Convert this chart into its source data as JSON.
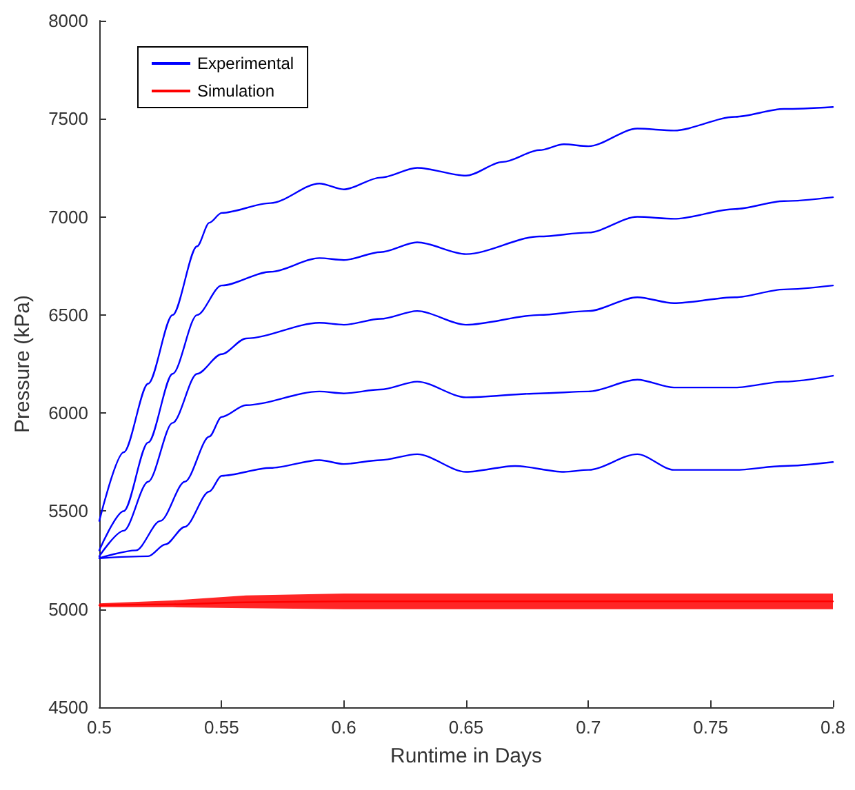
{
  "chart_data": {
    "type": "line",
    "xlabel": "Runtime in Days",
    "ylabel": "Pressure (kPa)",
    "xlim": [
      0.5,
      0.8
    ],
    "xticks": [
      0.5,
      0.55,
      0.6,
      0.65,
      0.7,
      0.75,
      0.8
    ],
    "ylim": [
      4500,
      8000
    ],
    "yticks": [
      4500,
      5000,
      5500,
      6000,
      6500,
      7000,
      7500,
      8000
    ],
    "grid": false,
    "legend": "top left",
    "marker": "none",
    "line_style": "solid",
    "series": [
      {
        "name": "Experimental",
        "color": "#0000ff",
        "x": [
          0.5,
          0.51,
          0.52,
          0.53,
          0.54,
          0.545,
          0.55,
          0.57,
          0.59,
          0.6,
          0.615,
          0.63,
          0.65,
          0.665,
          0.68,
          0.69,
          0.7,
          0.72,
          0.735,
          0.76,
          0.78,
          0.8
        ],
        "values": [
          5450,
          5800,
          6150,
          6500,
          6850,
          6970,
          7020,
          7070,
          7170,
          7140,
          7200,
          7250,
          7210,
          7280,
          7340,
          7370,
          7360,
          7450,
          7440,
          7510,
          7550,
          7560
        ]
      },
      {
        "color": "#0000ff",
        "x": [
          0.5,
          0.51,
          0.52,
          0.53,
          0.54,
          0.55,
          0.57,
          0.59,
          0.6,
          0.615,
          0.63,
          0.65,
          0.68,
          0.7,
          0.72,
          0.735,
          0.76,
          0.78,
          0.8
        ],
        "values": [
          5300,
          5500,
          5850,
          6200,
          6500,
          6650,
          6720,
          6790,
          6780,
          6820,
          6870,
          6810,
          6900,
          6920,
          7000,
          6990,
          7040,
          7080,
          7100
        ]
      },
      {
        "color": "#0000ff",
        "x": [
          0.5,
          0.51,
          0.52,
          0.53,
          0.54,
          0.55,
          0.56,
          0.59,
          0.6,
          0.615,
          0.63,
          0.65,
          0.68,
          0.7,
          0.72,
          0.735,
          0.76,
          0.78,
          0.8
        ],
        "values": [
          5270,
          5400,
          5650,
          5950,
          6200,
          6300,
          6380,
          6460,
          6450,
          6480,
          6520,
          6450,
          6500,
          6520,
          6590,
          6560,
          6590,
          6630,
          6650
        ]
      },
      {
        "color": "#0000ff",
        "x": [
          0.5,
          0.515,
          0.525,
          0.535,
          0.545,
          0.55,
          0.56,
          0.59,
          0.6,
          0.615,
          0.63,
          0.65,
          0.68,
          0.7,
          0.72,
          0.735,
          0.76,
          0.78,
          0.8
        ],
        "values": [
          5260,
          5300,
          5450,
          5650,
          5880,
          5980,
          6040,
          6110,
          6100,
          6120,
          6160,
          6080,
          6100,
          6110,
          6170,
          6130,
          6130,
          6160,
          6190
        ]
      },
      {
        "color": "#0000ff",
        "x": [
          0.5,
          0.52,
          0.527,
          0.535,
          0.545,
          0.55,
          0.57,
          0.59,
          0.6,
          0.615,
          0.63,
          0.65,
          0.67,
          0.69,
          0.7,
          0.72,
          0.735,
          0.76,
          0.78,
          0.8
        ],
        "values": [
          5260,
          5270,
          5330,
          5420,
          5600,
          5680,
          5720,
          5760,
          5740,
          5760,
          5790,
          5700,
          5730,
          5700,
          5710,
          5790,
          5710,
          5710,
          5730,
          5750
        ]
      },
      {
        "name": "Simulation",
        "color": "#ff0000",
        "x": [
          0.5,
          0.53,
          0.56,
          0.6,
          0.65,
          0.7,
          0.75,
          0.8
        ],
        "values": [
          5020,
          5025,
          5035,
          5040,
          5040,
          5040,
          5040,
          5040
        ],
        "lower": [
          5010,
          5010,
          5005,
          5000,
          5000,
          5000,
          5000,
          5000
        ],
        "upper": [
          5030,
          5045,
          5070,
          5080,
          5080,
          5080,
          5080,
          5080
        ]
      }
    ]
  }
}
